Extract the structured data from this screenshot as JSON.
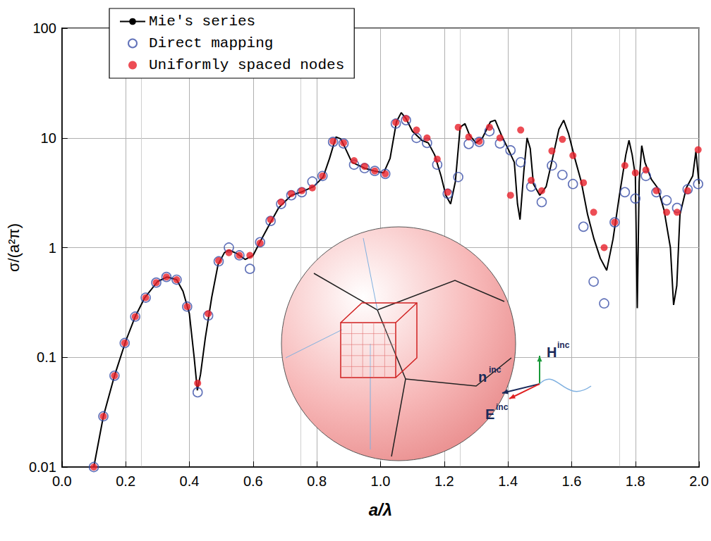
{
  "chart_data": {
    "type": "line",
    "x_label": "a/λ",
    "y_label": "σ/(a²π)",
    "xlim": [
      0,
      2.0
    ],
    "xticks": [
      {
        "value": 0,
        "label": "0.0"
      },
      0.2,
      0.4,
      0.6,
      0.8,
      {
        "value": 1,
        "label": "1.0"
      },
      1.2,
      1.4,
      1.6,
      1.8,
      {
        "value": 2,
        "label": "2.0"
      }
    ],
    "ylim": [
      0.01,
      100
    ],
    "yticks": [
      0.01,
      0.1,
      1,
      10,
      100
    ],
    "log": "y",
    "grid": true,
    "legend": "upper left",
    "annotations": [
      {
        "text": "n",
        "sup": "inc"
      },
      {
        "text": "H",
        "sup": "inc"
      },
      {
        "text": "E",
        "sup": "inc"
      }
    ],
    "series": [
      {
        "name": "Mie's series",
        "type": "line",
        "color": "#000000",
        "line_style": "solid",
        "marker": "none",
        "x": [
          0.1,
          0.13,
          0.165,
          0.2,
          0.23,
          0.26,
          0.3,
          0.33,
          0.36,
          0.38,
          0.4,
          0.415,
          0.425,
          0.435,
          0.45,
          0.47,
          0.49,
          0.51,
          0.525,
          0.55,
          0.575,
          0.6,
          0.62,
          0.65,
          0.68,
          0.72,
          0.75,
          0.79,
          0.82,
          0.84,
          0.86,
          0.875,
          0.89,
          0.91,
          0.95,
          0.98,
          1.01,
          1.03,
          1.05,
          1.065,
          1.08,
          1.1,
          1.13,
          1.15,
          1.17,
          1.19,
          1.205,
          1.22,
          1.235,
          1.25,
          1.265,
          1.28,
          1.3,
          1.32,
          1.345,
          1.36,
          1.38,
          1.4,
          1.42,
          1.43,
          1.438,
          1.45,
          1.46,
          1.47,
          1.48,
          1.5,
          1.52,
          1.54,
          1.56,
          1.575,
          1.59,
          1.61,
          1.63,
          1.65,
          1.67,
          1.69,
          1.71,
          1.73,
          1.75,
          1.77,
          1.78,
          1.79,
          1.8,
          1.806,
          1.812,
          1.82,
          1.83,
          1.85,
          1.87,
          1.89,
          1.91,
          1.92,
          1.93,
          1.94,
          1.96,
          1.98,
          1.99,
          2.0
        ],
        "values": [
          0.01,
          0.029,
          0.068,
          0.14,
          0.235,
          0.35,
          0.49,
          0.54,
          0.51,
          0.4,
          0.25,
          0.1,
          0.05,
          0.07,
          0.15,
          0.35,
          0.7,
          0.9,
          0.95,
          0.88,
          0.78,
          0.85,
          1.1,
          1.6,
          2.3,
          3.0,
          3.2,
          3.6,
          4.4,
          6.5,
          10.2,
          9.8,
          8.0,
          6.0,
          5.3,
          5.0,
          4.8,
          6.5,
          14,
          17,
          15,
          11.5,
          9.5,
          9.0,
          7.0,
          4.5,
          3.0,
          2.5,
          4.0,
          12.5,
          13.5,
          10.5,
          9.0,
          10,
          14,
          14.5,
          10.5,
          8.0,
          6.0,
          2.5,
          1.8,
          5.0,
          10,
          8,
          3.8,
          3.0,
          3.6,
          6.5,
          12,
          14.5,
          11,
          6.5,
          4.0,
          2.0,
          1.2,
          0.8,
          0.62,
          1.2,
          3.0,
          7,
          9.5,
          7.0,
          4.5,
          0.28,
          4.0,
          8.5,
          6.0,
          4.2,
          3.5,
          2.2,
          1.0,
          0.3,
          0.45,
          2.0,
          3.5,
          4.5,
          7.5,
          3.8
        ]
      },
      {
        "name": "Direct mapping",
        "type": "scatter",
        "color": "#3a4fa8",
        "marker": "open circle",
        "x": [
          0.1,
          0.13,
          0.165,
          0.197,
          0.23,
          0.263,
          0.296,
          0.328,
          0.36,
          0.393,
          0.426,
          0.459,
          0.492,
          0.524,
          0.557,
          0.59,
          0.622,
          0.655,
          0.688,
          0.72,
          0.753,
          0.786,
          0.818,
          0.851,
          0.884,
          0.917,
          0.95,
          0.982,
          1.015,
          1.048,
          1.08,
          1.113,
          1.146,
          1.178,
          1.211,
          1.244,
          1.277,
          1.31,
          1.342,
          1.375,
          1.408,
          1.44,
          1.473,
          1.506,
          1.538,
          1.571,
          1.604,
          1.637,
          1.669,
          1.702,
          1.735,
          1.767,
          1.8,
          1.833,
          1.866,
          1.898,
          1.931,
          1.964,
          1.997
        ],
        "values": [
          0.01,
          0.029,
          0.068,
          0.135,
          0.235,
          0.35,
          0.48,
          0.54,
          0.51,
          0.29,
          0.048,
          0.24,
          0.75,
          1.0,
          0.85,
          0.64,
          1.12,
          1.75,
          2.5,
          3.0,
          3.2,
          4.0,
          4.5,
          9.2,
          8.9,
          5.7,
          5.3,
          5.0,
          4.7,
          13.5,
          14.5,
          10.0,
          9.0,
          5.7,
          3.1,
          4.4,
          8.8,
          9.2,
          11.5,
          8.9,
          7.7,
          6.0,
          3.6,
          2.6,
          5.6,
          4.6,
          3.8,
          1.55,
          0.49,
          0.31,
          1.7,
          3.2,
          2.8,
          4.5,
          3.2,
          2.7,
          2.3,
          3.4,
          3.8
        ]
      },
      {
        "name": "Uniformly spaced nodes",
        "type": "scatter",
        "color": "#e8202a",
        "marker": "circle",
        "x": [
          0.1,
          0.13,
          0.165,
          0.197,
          0.23,
          0.263,
          0.296,
          0.328,
          0.36,
          0.393,
          0.426,
          0.459,
          0.492,
          0.524,
          0.557,
          0.59,
          0.622,
          0.655,
          0.688,
          0.72,
          0.753,
          0.786,
          0.818,
          0.851,
          0.884,
          0.917,
          0.95,
          0.982,
          1.015,
          1.048,
          1.08,
          1.113,
          1.146,
          1.178,
          1.211,
          1.244,
          1.277,
          1.31,
          1.342,
          1.375,
          1.408,
          1.44,
          1.473,
          1.506,
          1.538,
          1.571,
          1.604,
          1.637,
          1.669,
          1.702,
          1.735,
          1.767,
          1.8,
          1.833,
          1.866,
          1.898,
          1.931,
          1.964,
          1.997
        ],
        "values": [
          0.01,
          0.029,
          0.068,
          0.135,
          0.235,
          0.35,
          0.48,
          0.54,
          0.51,
          0.29,
          0.058,
          0.25,
          0.76,
          0.9,
          0.85,
          0.85,
          1.1,
          1.8,
          2.6,
          3.1,
          3.3,
          3.5,
          4.5,
          9.3,
          9.0,
          6.2,
          5.5,
          5.0,
          4.7,
          13.8,
          15.0,
          11.8,
          10.0,
          6.4,
          3.2,
          12.5,
          10.2,
          9.3,
          12.5,
          10.0,
          3.0,
          11.8,
          4.1,
          3.3,
          7.6,
          9.7,
          6.9,
          3.9,
          2.1,
          1.0,
          1.7,
          5.6,
          4.8,
          5.1,
          3.3,
          2.1,
          2.1,
          3.3,
          7.8
        ]
      }
    ]
  }
}
